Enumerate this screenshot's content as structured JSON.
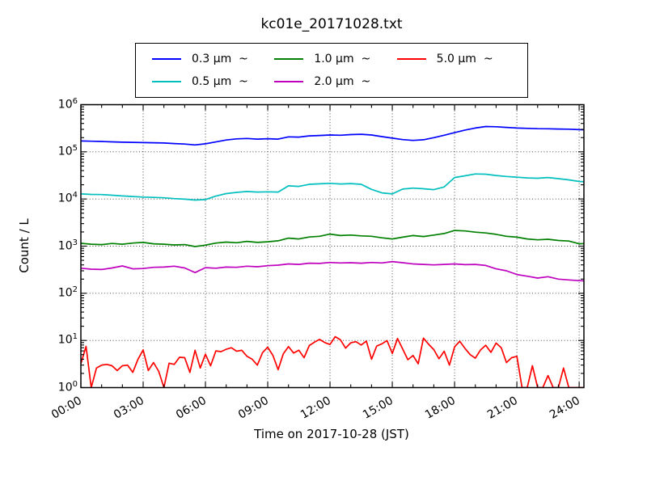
{
  "figure": {
    "background_color": "#ffffff",
    "spine_color": "#000000",
    "grid_color": "#000000",
    "grid_style": "dotted"
  },
  "chart_data": {
    "type": "line",
    "title": "kc01e_20171028.txt",
    "xlabel": "Time on 2017-10-28 (JST)",
    "ylabel": "Count / L",
    "x_axis": {
      "unit": "time of day (JST)",
      "range_hours": [
        0,
        24.23
      ],
      "tick_hours": [
        0,
        3,
        6,
        9,
        12,
        15,
        18,
        21,
        24
      ],
      "tick_labels": [
        "00:00",
        "03:00",
        "06:00",
        "09:00",
        "12:00",
        "15:00",
        "18:00",
        "21:00",
        "24:00"
      ],
      "minor_tick_every_hours": 1
    },
    "y_axis": {
      "scale": "log",
      "range": [
        1,
        1000000
      ],
      "tick_base": "10",
      "tick_exponents": [
        0,
        1,
        2,
        3,
        4,
        5,
        6
      ]
    },
    "grid": {
      "major_x": true,
      "major_y": true,
      "style": "dotted"
    },
    "legend": {
      "rows": 2,
      "columns": 3,
      "position": "top-center",
      "order": "column-major"
    },
    "series": [
      {
        "label": "0.3 μm  ~",
        "size_um": "0.3",
        "color": "#0000ff",
        "step_hours": 0.5,
        "values": [
          170000,
          168000,
          166000,
          163000,
          160000,
          159000,
          157000,
          156000,
          154000,
          150000,
          146000,
          140000,
          148000,
          162000,
          178000,
          188000,
          192000,
          186000,
          190000,
          186000,
          208000,
          205000,
          218000,
          222000,
          228000,
          225000,
          232000,
          236000,
          228000,
          210000,
          195000,
          182000,
          175000,
          180000,
          200000,
          225000,
          255000,
          290000,
          320000,
          345000,
          340000,
          330000,
          320000,
          315000,
          310000,
          308000,
          305000,
          302000,
          295000,
          292000
        ]
      },
      {
        "label": "0.5 μm  ~",
        "size_um": "0.5",
        "color": "#00bfbf",
        "step_hours": 0.5,
        "values": [
          12800,
          12500,
          12400,
          12000,
          11600,
          11300,
          11000,
          10800,
          10600,
          10200,
          9900,
          9500,
          9700,
          11500,
          13000,
          13800,
          14400,
          14000,
          14200,
          14000,
          19000,
          18500,
          20500,
          21000,
          21500,
          20800,
          21200,
          20500,
          16000,
          13500,
          12800,
          16200,
          17000,
          16500,
          15800,
          18000,
          28500,
          31000,
          34000,
          33500,
          31500,
          30000,
          29000,
          28000,
          27500,
          28500,
          27000,
          25500,
          23500,
          23000
        ]
      },
      {
        "label": "1.0 μm  ~",
        "size_um": "1.0",
        "color": "#008000",
        "step_hours": 0.5,
        "values": [
          1150,
          1100,
          1080,
          1140,
          1100,
          1160,
          1200,
          1120,
          1100,
          1060,
          1080,
          980,
          1050,
          1160,
          1220,
          1180,
          1260,
          1200,
          1240,
          1300,
          1480,
          1420,
          1560,
          1620,
          1800,
          1680,
          1720,
          1650,
          1620,
          1500,
          1420,
          1550,
          1680,
          1600,
          1720,
          1850,
          2150,
          2100,
          1980,
          1900,
          1780,
          1620,
          1550,
          1420,
          1360,
          1400,
          1320,
          1280,
          1120,
          1150
        ]
      },
      {
        "label": "2.0 μm  ~",
        "size_um": "2.0",
        "color": "#bf00bf",
        "step_hours": 0.5,
        "values": [
          340,
          325,
          320,
          345,
          380,
          330,
          335,
          355,
          360,
          375,
          345,
          275,
          350,
          340,
          360,
          355,
          375,
          365,
          385,
          395,
          420,
          410,
          435,
          430,
          450,
          440,
          445,
          435,
          450,
          440,
          470,
          445,
          420,
          410,
          400,
          410,
          420,
          405,
          410,
          390,
          330,
          300,
          250,
          230,
          210,
          225,
          200,
          192,
          185,
          182
        ]
      },
      {
        "label": "5.0 μm  ~",
        "size_um": "5.0",
        "color": "#ff0000",
        "step_hours": 0.25,
        "values": [
          3.2,
          7.5,
          1.0,
          2.6,
          3.0,
          3.1,
          2.9,
          2.3,
          2.9,
          3.0,
          2.1,
          4.0,
          6.3,
          2.3,
          3.4,
          2.2,
          1.0,
          3.3,
          3.1,
          4.4,
          4.3,
          2.1,
          6.2,
          2.6,
          5.1,
          2.9,
          6.0,
          5.8,
          6.5,
          7.0,
          5.9,
          6.2,
          4.6,
          4.0,
          3.0,
          5.5,
          7.2,
          4.8,
          2.4,
          5.2,
          7.4,
          5.4,
          6.2,
          4.3,
          7.8,
          9.2,
          10.5,
          9.0,
          8.2,
          12.0,
          10.3,
          6.9,
          8.9,
          9.4,
          8.0,
          9.7,
          4.0,
          7.6,
          8.5,
          9.9,
          5.3,
          11.0,
          6.6,
          3.9,
          4.8,
          3.2,
          11.2,
          8.3,
          6.4,
          4.1,
          5.9,
          3.0,
          7.3,
          9.6,
          6.8,
          5.0,
          4.2,
          6.3,
          7.9,
          5.6,
          8.8,
          7.0,
          3.4,
          4.3,
          4.6,
          1.0,
          1.0,
          2.9,
          1.0,
          1.0,
          1.8,
          1.0,
          1.0,
          2.6,
          1.0,
          1.0,
          1.0,
          1.0,
          1.0
        ]
      }
    ]
  }
}
